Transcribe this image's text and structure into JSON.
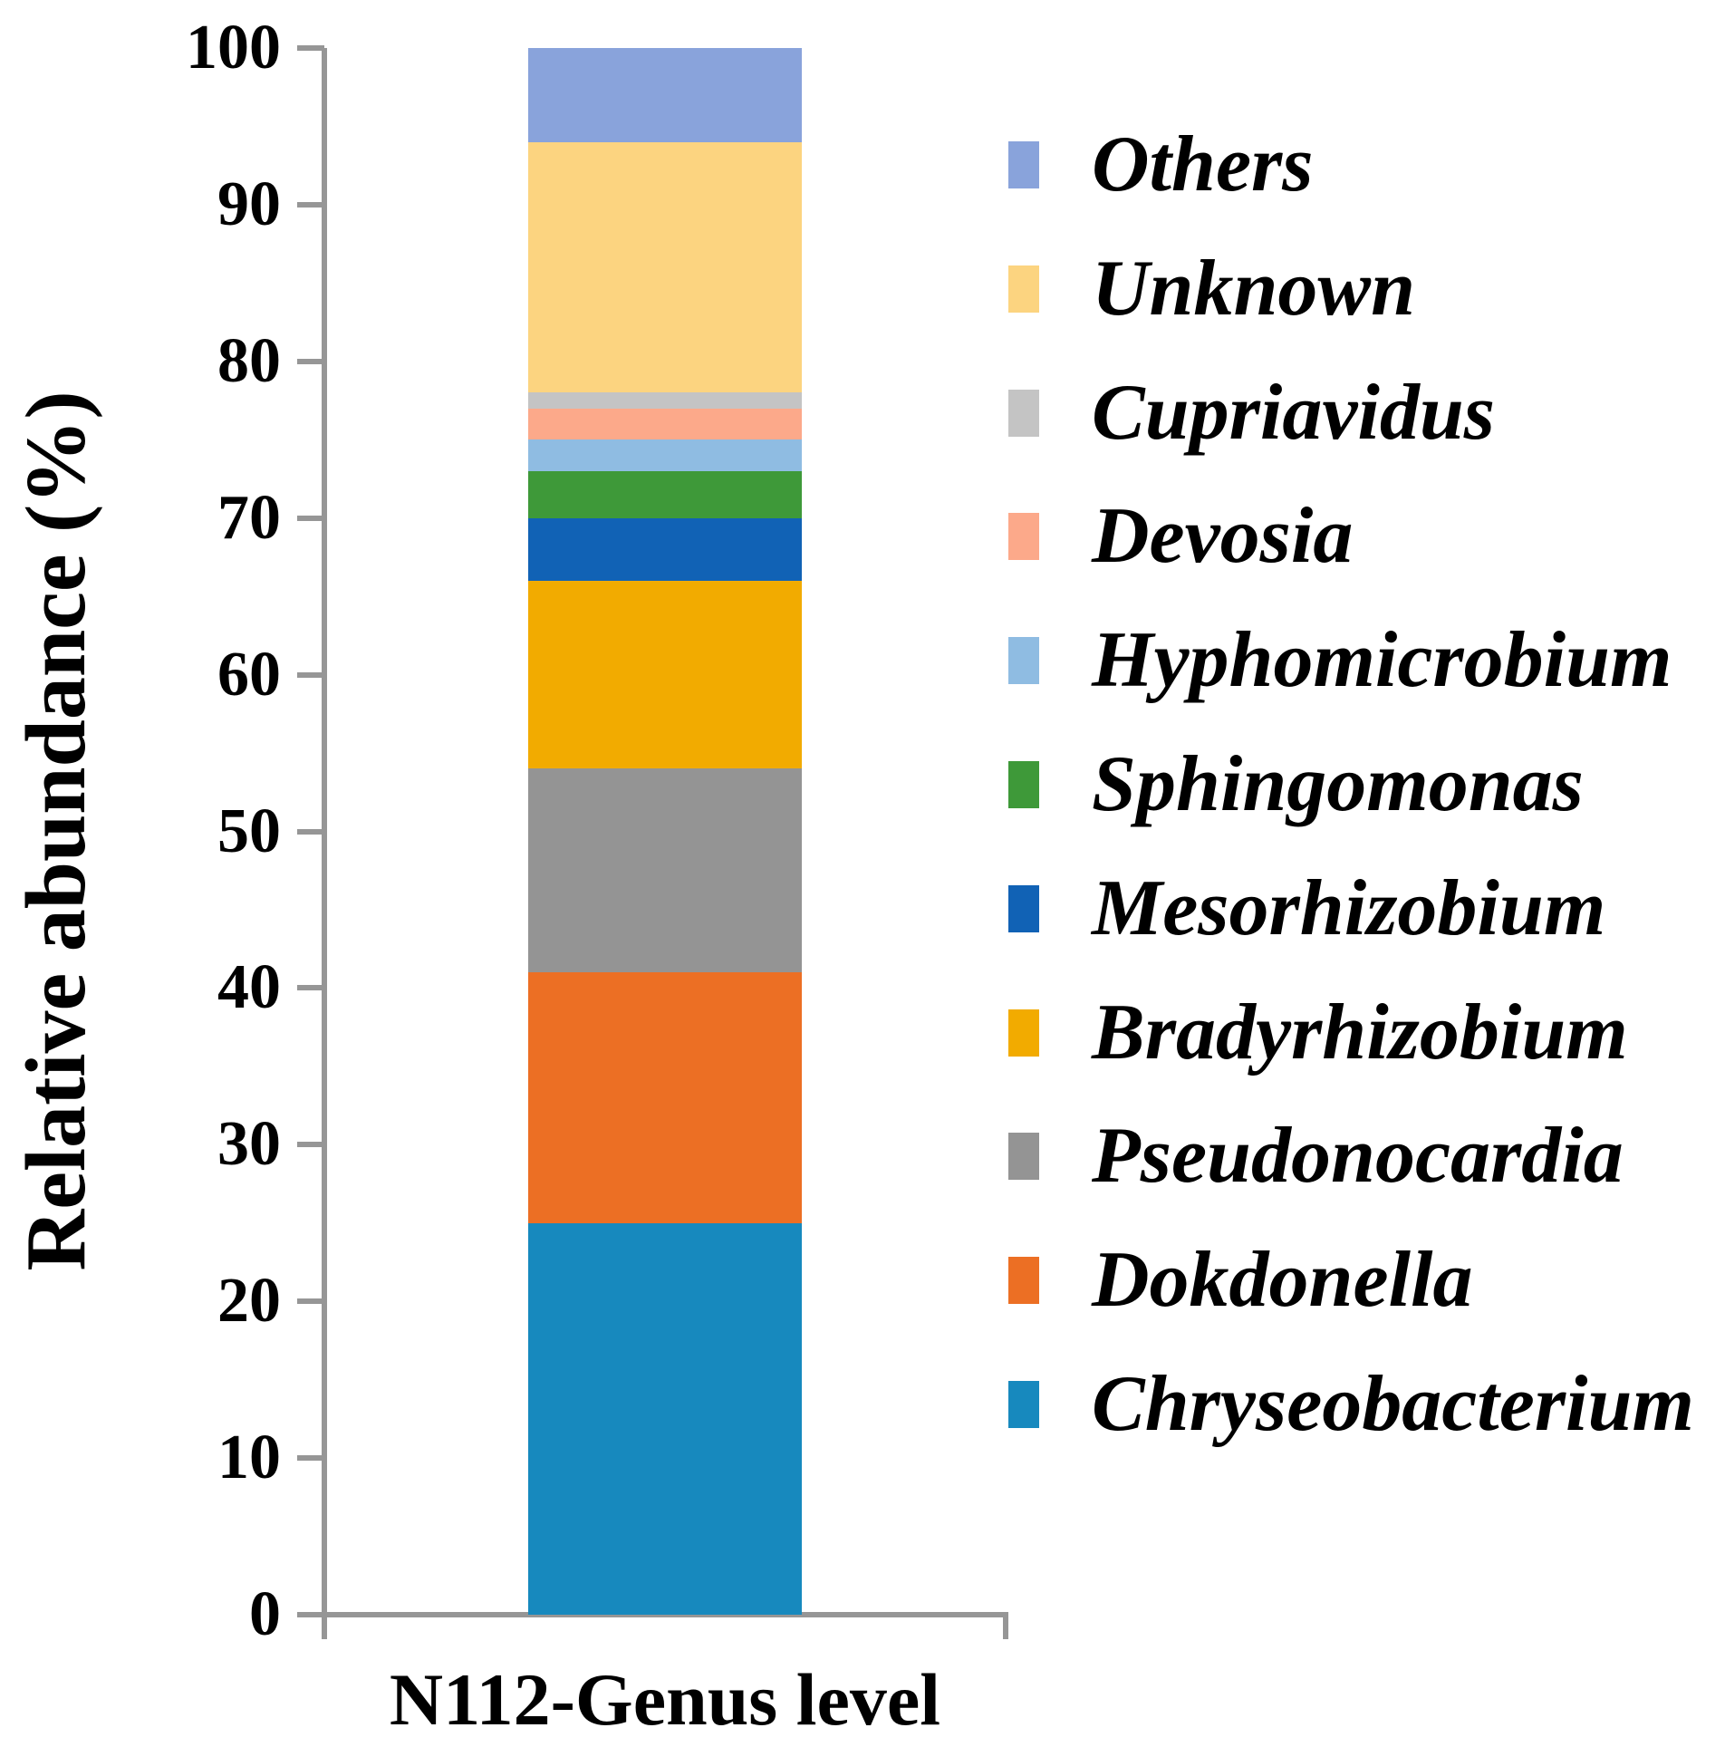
{
  "chart_data": {
    "type": "bar",
    "stacked": true,
    "title": "",
    "xlabel": "N112-Genus level",
    "ylabel": "Relative abundance (%)",
    "ylim": [
      0,
      100
    ],
    "yticks": [
      0,
      10,
      20,
      30,
      40,
      50,
      60,
      70,
      80,
      90,
      100
    ],
    "grid": false,
    "axis_color": "#969696",
    "text_color": "#000000",
    "categories": [
      "N112-Genus level"
    ],
    "series": [
      {
        "name": "Chryseobacterium",
        "values": [
          25
        ],
        "color": "#1789BE"
      },
      {
        "name": "Dokdonella",
        "values": [
          16
        ],
        "color": "#EC6F24"
      },
      {
        "name": "Pseudonocardia",
        "values": [
          13
        ],
        "color": "#949494"
      },
      {
        "name": "Bradyrhizobium",
        "values": [
          12
        ],
        "color": "#F2AB00"
      },
      {
        "name": "Mesorhizobium",
        "values": [
          4
        ],
        "color": "#1162B5"
      },
      {
        "name": "Sphingomonas",
        "values": [
          3
        ],
        "color": "#3E9939"
      },
      {
        "name": "Hyphomicrobium",
        "values": [
          2
        ],
        "color": "#8FBCE2"
      },
      {
        "name": "Devosia",
        "values": [
          2
        ],
        "color": "#FCA98A"
      },
      {
        "name": "Cupriavidus",
        "values": [
          1
        ],
        "color": "#C4C4C4"
      },
      {
        "name": "Unknown",
        "values": [
          16
        ],
        "color": "#FCD480"
      },
      {
        "name": "Others",
        "values": [
          6
        ],
        "color": "#89A3DB"
      }
    ],
    "legend": {
      "position": "right",
      "order_top_to_bottom": [
        "Others",
        "Unknown",
        "Cupriavidus",
        "Devosia",
        "Hyphomicrobium",
        "Sphingomonas",
        "Mesorhizobium",
        "Bradyrhizobium",
        "Pseudonocardia",
        "Dokdonella",
        "Chryseobacterium"
      ]
    }
  }
}
